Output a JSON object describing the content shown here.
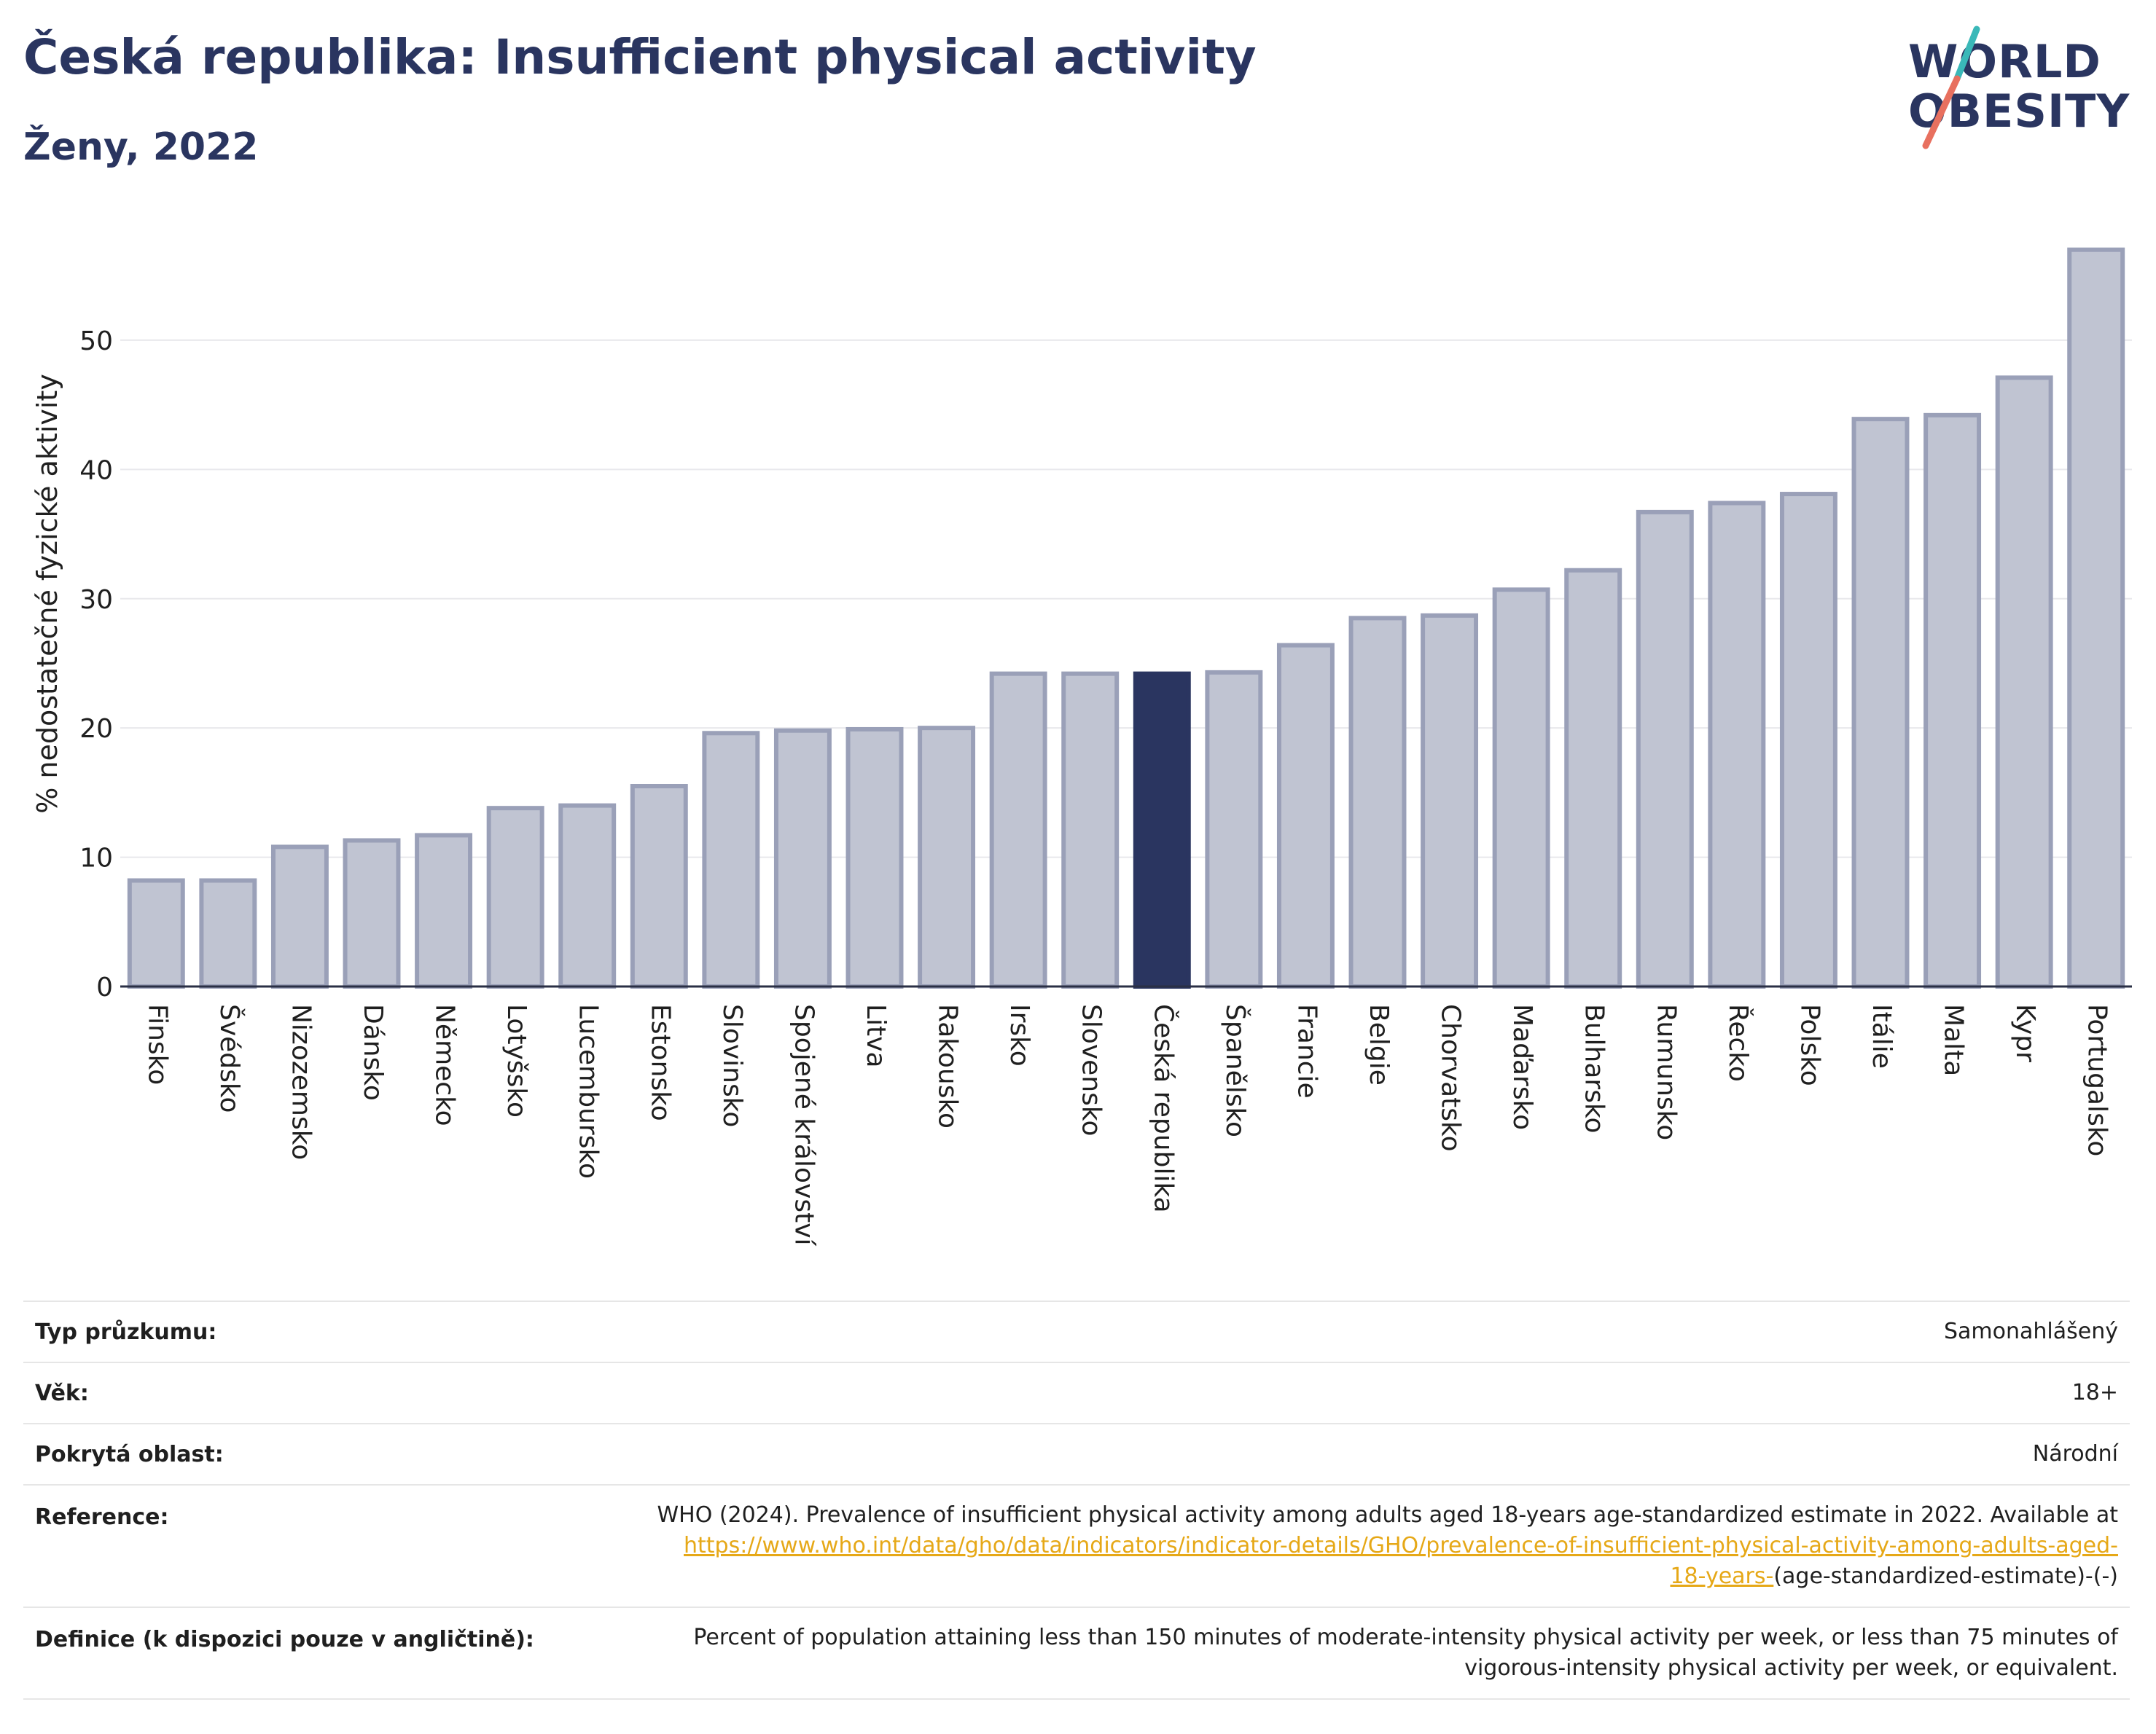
{
  "title": "Česká republika: Insufficient physical activity",
  "subtitle": "Ženy, 2022",
  "logo": {
    "line1": "WORLD",
    "line2": "OBESITY"
  },
  "colors": {
    "bar": "#c0c4d2",
    "bar_border": "#9aa0b8",
    "highlight": "#2a3560",
    "title": "#2a3560",
    "link": "#e6a817",
    "logo_slash_teal": "#3ab8b8",
    "logo_slash_red": "#e8705f"
  },
  "chart_data": {
    "type": "bar",
    "ylabel": "% nedostatečné fyzické aktivity",
    "xlabel": "",
    "ylim": [
      0,
      58
    ],
    "yticks": [
      0,
      10,
      20,
      30,
      40,
      50
    ],
    "grid": true,
    "highlight_category": "Česká republika",
    "categories": [
      "Finsko",
      "Švédsko",
      "Nizozemsko",
      "Dánsko",
      "Německo",
      "Lotyšsko",
      "Lucembursko",
      "Estonsko",
      "Slovinsko",
      "Spojené království",
      "Litva",
      "Rakousko",
      "Irsko",
      "Slovensko",
      "Česká republika",
      "Španělsko",
      "Francie",
      "Belgie",
      "Chorvatsko",
      "Maďarsko",
      "Bulharsko",
      "Rumunsko",
      "Řecko",
      "Polsko",
      "Itálie",
      "Malta",
      "Kypr",
      "Portugalsko"
    ],
    "values": [
      8.2,
      8.2,
      10.8,
      11.3,
      11.7,
      13.8,
      14.0,
      15.5,
      19.6,
      19.8,
      19.9,
      20.0,
      24.2,
      24.2,
      24.2,
      24.3,
      26.4,
      28.5,
      28.7,
      30.7,
      32.2,
      36.7,
      37.4,
      38.1,
      43.9,
      44.2,
      47.1,
      57.0
    ]
  },
  "info": {
    "survey_type_label": "Typ průzkumu:",
    "survey_type_value": "Samonahlášený",
    "age_label": "Věk:",
    "age_value": "18+",
    "coverage_label": "Pokrytá oblast:",
    "coverage_value": "Národní",
    "reference_label": "Reference:",
    "reference_text": "WHO (2024). Prevalence of insufficient physical activity among adults aged 18-years age-standardized estimate in 2022. Available at",
    "reference_link_line1": "https://www.who.int/data/gho/data/indicators/indicator-details/GHO/prevalence-of-insufficient-physical-activity-among-adults-aged-",
    "reference_link_line2": "18-years-",
    "reference_suffix": "(age-standardized-estimate)-(-)",
    "definition_label": "Definice (k dispozici pouze v angličtině):",
    "definition_line1": "Percent of population attaining less than 150 minutes of moderate-intensity physical activity per week, or less than 75 minutes of",
    "definition_line2": "vigorous-intensity physical activity per week, or equivalent."
  }
}
